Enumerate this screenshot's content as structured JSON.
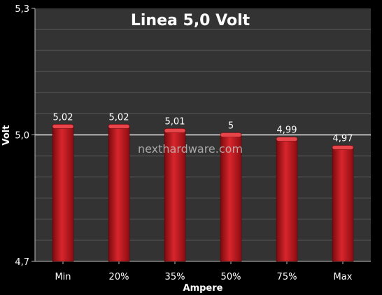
{
  "chart_data": {
    "type": "bar",
    "title": "Linea 5,0 Volt",
    "xlabel": "Ampere",
    "ylabel": "Volt",
    "categories": [
      "Min",
      "20%",
      "35%",
      "50%",
      "75%",
      "Max"
    ],
    "values": [
      5.02,
      5.02,
      5.01,
      5.0,
      4.99,
      4.97
    ],
    "value_labels": [
      "5,02",
      "5,02",
      "5,01",
      "5",
      "4,99",
      "4,97"
    ],
    "ylim": [
      4.7,
      5.3
    ],
    "yticks": [
      4.7,
      5.0,
      5.3
    ],
    "ytick_labels": [
      "4,7",
      "5,0",
      "5,3"
    ],
    "grid": true,
    "watermark": "nexthardware.com",
    "colors": {
      "bar": "#c0161c",
      "plot_background": "#333333",
      "page_background": "#000000",
      "gridline": "#5a5a5a",
      "reference_line": "#e6e6e6"
    }
  }
}
